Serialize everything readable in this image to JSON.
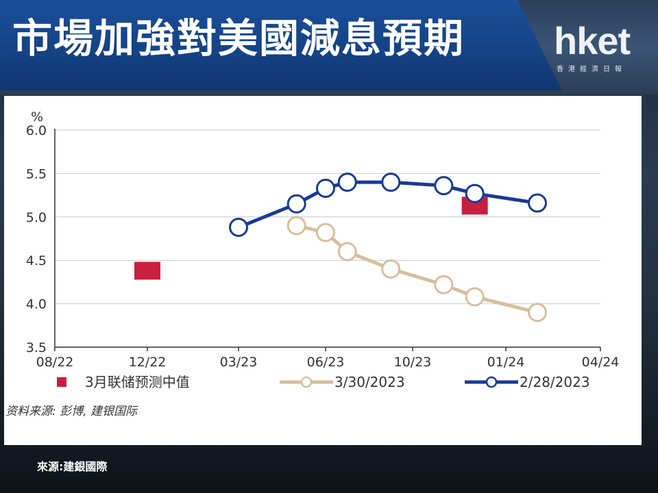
{
  "header": {
    "title": "市場加強對美國減息預期",
    "logo": "hket",
    "logo_subtitle": "香港經濟日報"
  },
  "footer": {
    "source": "來源:建銀國際"
  },
  "chart_data": {
    "type": "line",
    "ylabel": "%",
    "ylim": [
      3.5,
      6.0
    ],
    "yticks": [
      "6.0",
      "5.5",
      "5.0",
      "4.5",
      "4.0",
      "3.5"
    ],
    "x_tick_labels": [
      "08/22",
      "12/22",
      "03/23",
      "06/23",
      "10/23",
      "01/24",
      "04/24"
    ],
    "grid": "horizontal",
    "legend_position": "bottom",
    "source_note": "资料来源: 彭博, 建银国际",
    "colors": {
      "red": "#c8203c",
      "tan": "#d6bf9f",
      "blue": "#1a3a96"
    },
    "series": [
      {
        "name": "3月联储预测中值",
        "style": "square-markers",
        "color": "#c8203c",
        "x": [
          "12/22",
          "12/23"
        ],
        "values": [
          4.38,
          5.13
        ]
      },
      {
        "name": "3/30/2023",
        "style": "line-open-circles",
        "color": "#d6bf9f",
        "x": [
          "05/23",
          "06/23",
          "07/23",
          "09/23",
          "11/23",
          "12/23",
          "02/24"
        ],
        "values": [
          4.9,
          4.82,
          4.6,
          4.4,
          4.22,
          4.08,
          3.9
        ]
      },
      {
        "name": "2/28/2023",
        "style": "line-open-circles",
        "color": "#1a3a96",
        "x": [
          "03/23",
          "05/23",
          "06/23",
          "07/23",
          "09/23",
          "11/23",
          "12/23",
          "02/24"
        ],
        "values": [
          4.88,
          5.15,
          5.33,
          5.4,
          5.4,
          5.36,
          5.27,
          5.16
        ]
      }
    ]
  }
}
